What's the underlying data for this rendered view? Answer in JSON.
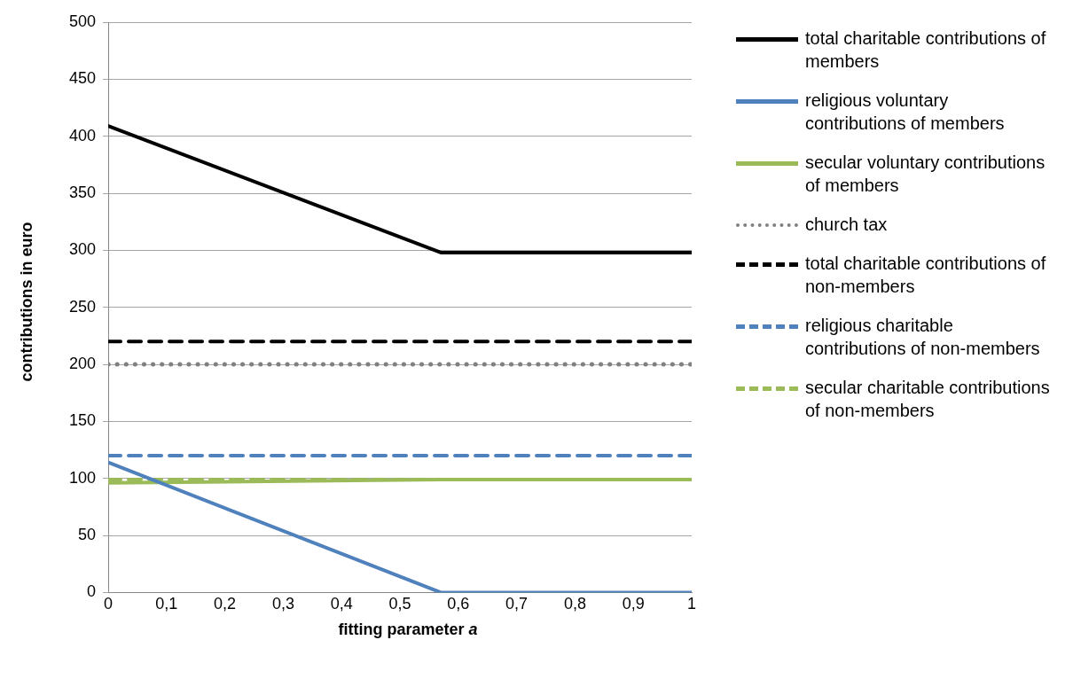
{
  "chart_data": {
    "type": "line",
    "xlabel": "fitting parameter a",
    "ylabel": "contributions in euro",
    "xlim": [
      0,
      1
    ],
    "xticks": [
      0,
      {
        "value": 0.1,
        "label": "0,1"
      },
      {
        "value": 0.2,
        "label": "0,2"
      },
      {
        "value": 0.3,
        "label": "0,3"
      },
      {
        "value": 0.4,
        "label": "0,4"
      },
      {
        "value": 0.5,
        "label": "0,5"
      },
      {
        "value": 0.6,
        "label": "0,6"
      },
      {
        "value": 0.7,
        "label": "0,7"
      },
      {
        "value": 0.8,
        "label": "0,8"
      },
      {
        "value": 0.9,
        "label": "0,9"
      },
      1
    ],
    "ylim": [
      0,
      500
    ],
    "yticks": [
      0,
      50,
      100,
      150,
      200,
      250,
      300,
      350,
      400,
      450,
      500
    ],
    "grid": "y",
    "legend": "right",
    "marker": "none",
    "series": [
      {
        "name": "total charitable contributions of members",
        "color": "#000000",
        "line_style": "solid",
        "x": [
          0,
          0.57,
          1
        ],
        "values": [
          409,
          298,
          298
        ]
      },
      {
        "name": "religious voluntary contributions of members",
        "color": "#4f81bd",
        "line_style": "solid",
        "x": [
          0,
          0.57,
          1
        ],
        "values": [
          114,
          0,
          0
        ]
      },
      {
        "name": "secular voluntary contributions of members",
        "color": "#9bbb59",
        "line_style": "solid",
        "x": [
          0,
          0.57,
          1
        ],
        "values": [
          96,
          99,
          99
        ]
      },
      {
        "name": "church tax",
        "color": "#808080",
        "line_style": "dotted",
        "x": [
          0,
          1
        ],
        "values": [
          200,
          200
        ]
      },
      {
        "name": "total charitable contributions of non-members",
        "color": "#000000",
        "line_style": "dashed",
        "x": [
          0,
          1
        ],
        "values": [
          220,
          220
        ]
      },
      {
        "name": "religious charitable contributions of non-members",
        "color": "#4f81bd",
        "line_style": "dashed",
        "x": [
          0,
          1
        ],
        "values": [
          120,
          120
        ]
      },
      {
        "name": "secular charitable contributions of non-members",
        "color": "#9bbb59",
        "line_style": "dashed",
        "x": [
          0,
          1
        ],
        "values": [
          99,
          99
        ]
      }
    ]
  }
}
